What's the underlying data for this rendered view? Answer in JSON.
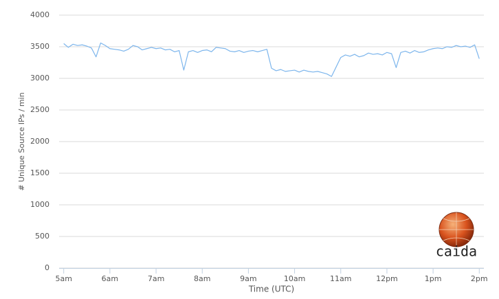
{
  "chart_data": {
    "type": "line",
    "x_label": "Time (UTC)",
    "y_label": "# Unique Source IPs / min",
    "watermark": "caida",
    "color": "#7cb5ec",
    "grid": true,
    "xlim": [
      4.9,
      14.1
    ],
    "xticks": [
      {
        "value": 5,
        "label": "5am"
      },
      {
        "value": 6,
        "label": "6am"
      },
      {
        "value": 7,
        "label": "7am"
      },
      {
        "value": 8,
        "label": "8am"
      },
      {
        "value": 9,
        "label": "9am"
      },
      {
        "value": 10,
        "label": "10am"
      },
      {
        "value": 11,
        "label": "11am"
      },
      {
        "value": 12,
        "label": "12pm"
      },
      {
        "value": 13,
        "label": "1pm"
      },
      {
        "value": 14,
        "label": "2pm"
      }
    ],
    "ylim": [
      0,
      4000
    ],
    "yticks": [
      0,
      500,
      1000,
      1500,
      2000,
      2500,
      3000,
      3500,
      4000
    ],
    "x": [
      5.0,
      5.1,
      5.2,
      5.3,
      5.4,
      5.5,
      5.6,
      5.7,
      5.8,
      5.9,
      6.0,
      6.1,
      6.2,
      6.3,
      6.4,
      6.5,
      6.6,
      6.7,
      6.8,
      6.9,
      7.0,
      7.1,
      7.2,
      7.3,
      7.4,
      7.5,
      7.6,
      7.7,
      7.8,
      7.9,
      8.0,
      8.1,
      8.2,
      8.3,
      8.4,
      8.5,
      8.6,
      8.7,
      8.8,
      8.9,
      9.0,
      9.1,
      9.2,
      9.3,
      9.4,
      9.5,
      9.6,
      9.7,
      9.8,
      9.9,
      10.0,
      10.1,
      10.2,
      10.3,
      10.4,
      10.5,
      10.6,
      10.7,
      10.8,
      10.9,
      11.0,
      11.1,
      11.2,
      11.3,
      11.4,
      11.5,
      11.6,
      11.7,
      11.8,
      11.9,
      12.0,
      12.1,
      12.2,
      12.3,
      12.4,
      12.5,
      12.6,
      12.7,
      12.8,
      12.9,
      13.0,
      13.1,
      13.2,
      13.3,
      13.4,
      13.5,
      13.6,
      13.7,
      13.8,
      13.9,
      14.0
    ],
    "values": [
      3550,
      3490,
      3540,
      3520,
      3530,
      3510,
      3480,
      3340,
      3560,
      3520,
      3470,
      3460,
      3450,
      3430,
      3460,
      3520,
      3500,
      3450,
      3470,
      3490,
      3470,
      3480,
      3450,
      3460,
      3420,
      3440,
      3130,
      3420,
      3440,
      3410,
      3440,
      3450,
      3420,
      3490,
      3480,
      3470,
      3430,
      3420,
      3440,
      3410,
      3430,
      3440,
      3420,
      3440,
      3460,
      3160,
      3120,
      3140,
      3110,
      3120,
      3130,
      3100,
      3130,
      3110,
      3100,
      3110,
      3090,
      3070,
      3030,
      3180,
      3330,
      3370,
      3350,
      3380,
      3340,
      3360,
      3400,
      3380,
      3390,
      3370,
      3410,
      3390,
      3170,
      3410,
      3430,
      3400,
      3440,
      3410,
      3420,
      3450,
      3470,
      3480,
      3470,
      3500,
      3490,
      3520,
      3500,
      3510,
      3490,
      3530,
      3310
    ]
  }
}
